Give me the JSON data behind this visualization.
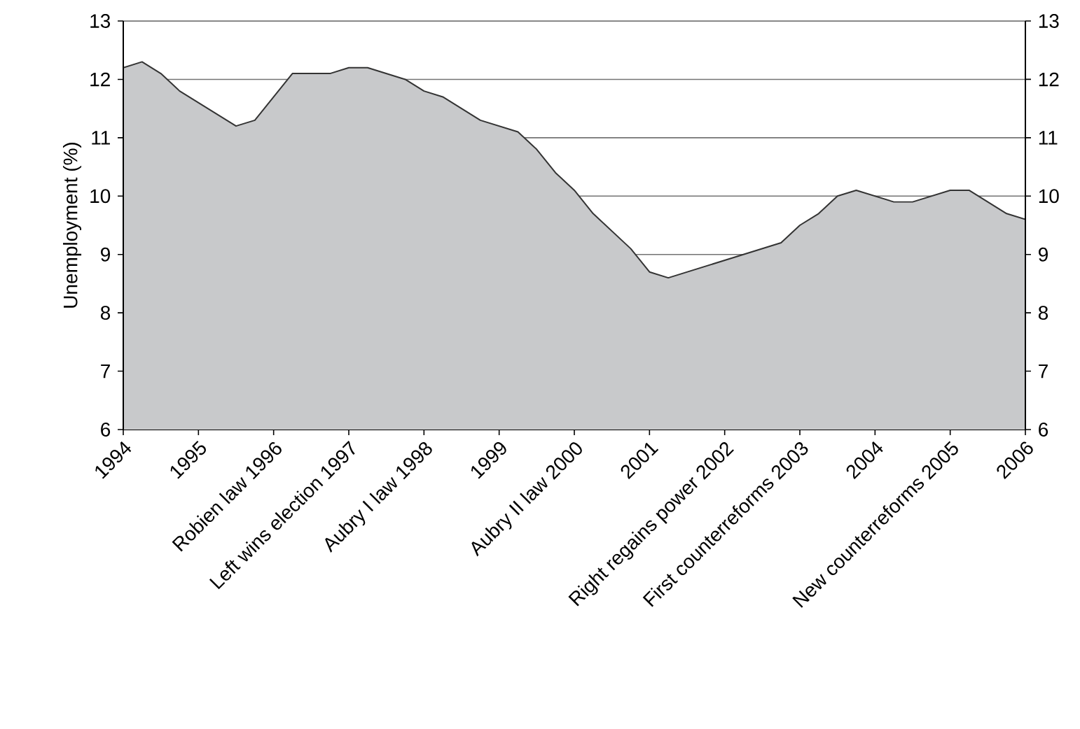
{
  "chart_data": {
    "type": "area",
    "ylabel": "Unemployment (%)",
    "x": [
      1994,
      1994.25,
      1994.5,
      1994.75,
      1995.5,
      1995.75,
      1996.25,
      1996.75,
      1997,
      1997.25,
      1997.75,
      1998,
      1998.25,
      1998.75,
      1999.25,
      1999.5,
      1999.75,
      2000,
      2000.25,
      2000.75,
      2001,
      2001.25,
      2002.75,
      2003,
      2003.25,
      2003.5,
      2003.75,
      2004.25,
      2004.5,
      2005,
      2005.25,
      2005.75,
      2006
    ],
    "series": [
      {
        "color": "#c8c9cb",
        "values": [
          12.2,
          12.3,
          12.1,
          11.8,
          11.2,
          11.3,
          12.1,
          12.1,
          12.2,
          12.2,
          12.0,
          11.8,
          11.7,
          11.3,
          11.1,
          10.8,
          10.4,
          10.1,
          9.7,
          9.1,
          8.7,
          8.6,
          9.2,
          9.5,
          9.7,
          10.0,
          10.1,
          9.9,
          9.9,
          10.1,
          10.1,
          9.7,
          9.6
        ]
      }
    ],
    "xlim": [
      1994,
      2006
    ],
    "xticks": [
      1994,
      1995,
      {
        "value": 1996,
        "label": "Robien law 1996"
      },
      {
        "value": 1997,
        "label": "Left wins election 1997"
      },
      {
        "value": 1998,
        "label": "Aubry I law 1998"
      },
      1999,
      {
        "value": 2000,
        "label": "Aubry II law 2000"
      },
      2001,
      {
        "value": 2002,
        "label": "Right regains power 2002"
      },
      {
        "value": 2003,
        "label": "First counterreforms 2003"
      },
      2004,
      {
        "value": 2005,
        "label": "New counterreforms 2005"
      },
      2006
    ],
    "ylim": [
      6,
      13
    ],
    "yticks": [
      6,
      7,
      8,
      9,
      10,
      11,
      12,
      13
    ],
    "y2lim": [
      6,
      13
    ],
    "y2ticks": [
      6,
      7,
      8,
      9,
      10,
      11,
      12,
      13
    ],
    "grid": "y"
  }
}
